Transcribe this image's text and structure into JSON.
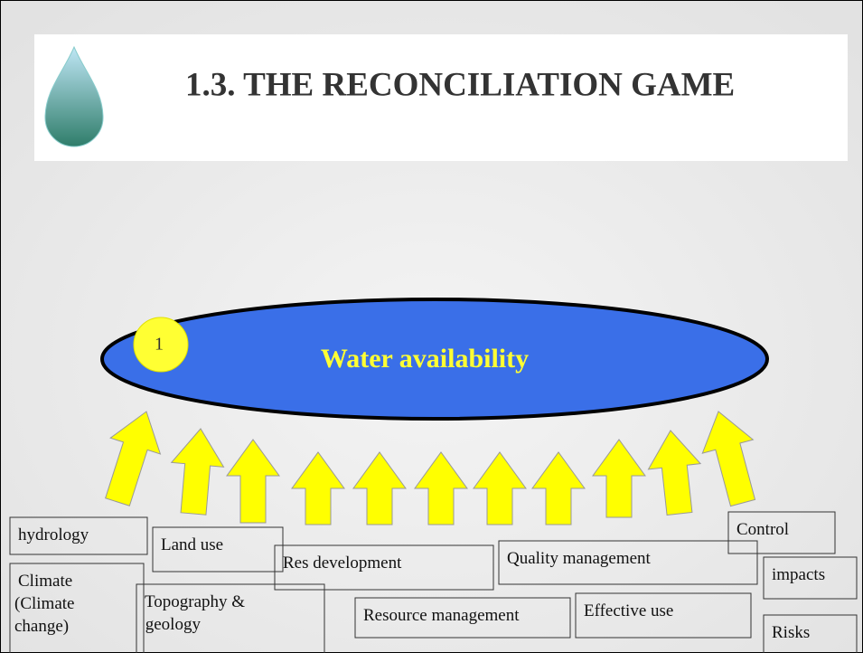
{
  "header": {
    "title": "1.3. THE RECONCILIATION GAME"
  },
  "diagram": {
    "center": {
      "number": "1",
      "label": "Water availability"
    },
    "boxes": [
      {
        "lines": [
          "hydrology"
        ]
      },
      {
        "lines": [
          "Land use"
        ]
      },
      {
        "lines": [
          "Res development"
        ]
      },
      {
        "lines": [
          "Quality management"
        ]
      },
      {
        "lines": [
          "Control"
        ]
      },
      {
        "lines": [
          "Climate",
          "(Climate",
          "change)"
        ]
      },
      {
        "lines": [
          "Topography &",
          " geology"
        ]
      },
      {
        "lines": [
          "Resource management"
        ]
      },
      {
        "lines": [
          "Effective use"
        ]
      },
      {
        "lines": [
          "impacts"
        ]
      },
      {
        "lines": [
          "Risks"
        ]
      }
    ]
  }
}
